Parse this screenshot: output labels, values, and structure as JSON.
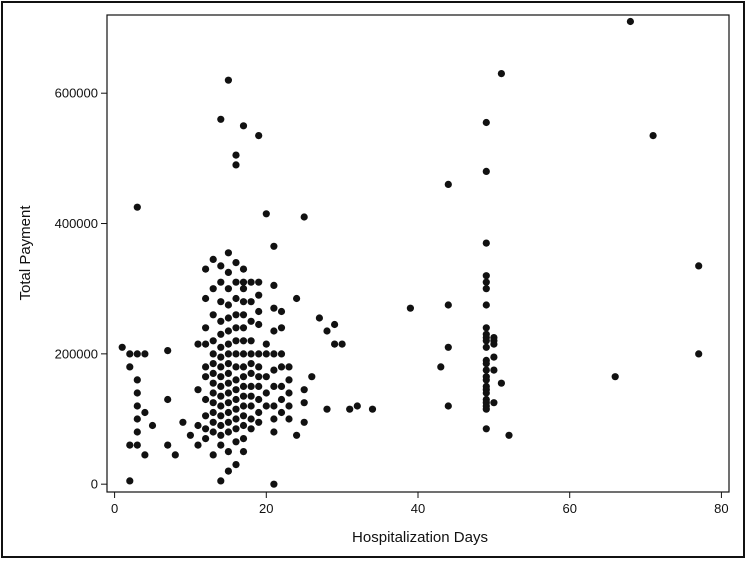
{
  "chart_data": {
    "type": "scatter",
    "xlabel": "Hospitalization Days",
    "ylabel": "Total Payment",
    "xlim": [
      -1,
      81
    ],
    "ylim": [
      -12000,
      720000
    ],
    "x_ticks": [
      0,
      20,
      40,
      60,
      80
    ],
    "y_ticks": [
      0,
      200000,
      400000,
      600000
    ],
    "x_tick_labels": [
      "0",
      "20",
      "40",
      "60",
      "80"
    ],
    "y_tick_labels": [
      "0",
      "200000",
      "400000",
      "600000"
    ],
    "grid": false,
    "marker_color": "#111111",
    "points": [
      [
        1,
        210000
      ],
      [
        2,
        200000
      ],
      [
        2,
        180000
      ],
      [
        2,
        60000
      ],
      [
        2,
        5000
      ],
      [
        3,
        425000
      ],
      [
        3,
        200000
      ],
      [
        3,
        160000
      ],
      [
        3,
        140000
      ],
      [
        3,
        120000
      ],
      [
        3,
        100000
      ],
      [
        3,
        80000
      ],
      [
        3,
        60000
      ],
      [
        4,
        110000
      ],
      [
        4,
        200000
      ],
      [
        4,
        45000
      ],
      [
        5,
        90000
      ],
      [
        7,
        205000
      ],
      [
        7,
        130000
      ],
      [
        7,
        60000
      ],
      [
        8,
        45000
      ],
      [
        9,
        95000
      ],
      [
        10,
        75000
      ],
      [
        11,
        60000
      ],
      [
        11,
        90000
      ],
      [
        11,
        145000
      ],
      [
        11,
        215000
      ],
      [
        12,
        330000
      ],
      [
        12,
        285000
      ],
      [
        12,
        240000
      ],
      [
        12,
        215000
      ],
      [
        12,
        180000
      ],
      [
        12,
        165000
      ],
      [
        12,
        130000
      ],
      [
        12,
        105000
      ],
      [
        12,
        85000
      ],
      [
        12,
        70000
      ],
      [
        13,
        345000
      ],
      [
        13,
        300000
      ],
      [
        13,
        260000
      ],
      [
        13,
        220000
      ],
      [
        13,
        200000
      ],
      [
        13,
        185000
      ],
      [
        13,
        170000
      ],
      [
        13,
        155000
      ],
      [
        13,
        140000
      ],
      [
        13,
        125000
      ],
      [
        13,
        110000
      ],
      [
        13,
        95000
      ],
      [
        13,
        80000
      ],
      [
        13,
        45000
      ],
      [
        14,
        560000
      ],
      [
        14,
        335000
      ],
      [
        14,
        310000
      ],
      [
        14,
        280000
      ],
      [
        14,
        250000
      ],
      [
        14,
        230000
      ],
      [
        14,
        210000
      ],
      [
        14,
        195000
      ],
      [
        14,
        180000
      ],
      [
        14,
        165000
      ],
      [
        14,
        150000
      ],
      [
        14,
        135000
      ],
      [
        14,
        120000
      ],
      [
        14,
        105000
      ],
      [
        14,
        90000
      ],
      [
        14,
        75000
      ],
      [
        14,
        60000
      ],
      [
        14,
        5000
      ],
      [
        15,
        620000
      ],
      [
        15,
        355000
      ],
      [
        15,
        325000
      ],
      [
        15,
        300000
      ],
      [
        15,
        275000
      ],
      [
        15,
        255000
      ],
      [
        15,
        235000
      ],
      [
        15,
        215000
      ],
      [
        15,
        200000
      ],
      [
        15,
        185000
      ],
      [
        15,
        170000
      ],
      [
        15,
        155000
      ],
      [
        15,
        140000
      ],
      [
        15,
        125000
      ],
      [
        15,
        110000
      ],
      [
        15,
        95000
      ],
      [
        15,
        80000
      ],
      [
        15,
        50000
      ],
      [
        15,
        20000
      ],
      [
        16,
        505000
      ],
      [
        16,
        490000
      ],
      [
        16,
        340000
      ],
      [
        16,
        310000
      ],
      [
        16,
        285000
      ],
      [
        16,
        260000
      ],
      [
        16,
        240000
      ],
      [
        16,
        220000
      ],
      [
        16,
        200000
      ],
      [
        16,
        180000
      ],
      [
        16,
        160000
      ],
      [
        16,
        145000
      ],
      [
        16,
        130000
      ],
      [
        16,
        115000
      ],
      [
        16,
        100000
      ],
      [
        16,
        85000
      ],
      [
        16,
        65000
      ],
      [
        16,
        30000
      ],
      [
        17,
        550000
      ],
      [
        17,
        330000
      ],
      [
        17,
        310000
      ],
      [
        17,
        300000
      ],
      [
        17,
        280000
      ],
      [
        17,
        260000
      ],
      [
        17,
        240000
      ],
      [
        17,
        220000
      ],
      [
        17,
        200000
      ],
      [
        17,
        180000
      ],
      [
        17,
        165000
      ],
      [
        17,
        150000
      ],
      [
        17,
        135000
      ],
      [
        17,
        120000
      ],
      [
        17,
        105000
      ],
      [
        17,
        90000
      ],
      [
        17,
        70000
      ],
      [
        17,
        50000
      ],
      [
        18,
        310000
      ],
      [
        18,
        280000
      ],
      [
        18,
        250000
      ],
      [
        18,
        220000
      ],
      [
        18,
        200000
      ],
      [
        18,
        185000
      ],
      [
        18,
        170000
      ],
      [
        18,
        150000
      ],
      [
        18,
        135000
      ],
      [
        18,
        120000
      ],
      [
        18,
        100000
      ],
      [
        18,
        85000
      ],
      [
        19,
        535000
      ],
      [
        19,
        310000
      ],
      [
        19,
        290000
      ],
      [
        19,
        265000
      ],
      [
        19,
        245000
      ],
      [
        19,
        200000
      ],
      [
        19,
        180000
      ],
      [
        19,
        165000
      ],
      [
        19,
        150000
      ],
      [
        19,
        130000
      ],
      [
        19,
        110000
      ],
      [
        19,
        95000
      ],
      [
        20,
        415000
      ],
      [
        20,
        215000
      ],
      [
        20,
        200000
      ],
      [
        20,
        165000
      ],
      [
        20,
        140000
      ],
      [
        20,
        120000
      ],
      [
        21,
        365000
      ],
      [
        21,
        305000
      ],
      [
        21,
        270000
      ],
      [
        21,
        235000
      ],
      [
        21,
        200000
      ],
      [
        21,
        175000
      ],
      [
        21,
        150000
      ],
      [
        21,
        120000
      ],
      [
        21,
        100000
      ],
      [
        21,
        80000
      ],
      [
        21,
        0
      ],
      [
        22,
        265000
      ],
      [
        22,
        240000
      ],
      [
        22,
        200000
      ],
      [
        22,
        180000
      ],
      [
        22,
        150000
      ],
      [
        22,
        130000
      ],
      [
        22,
        110000
      ],
      [
        23,
        180000
      ],
      [
        23,
        160000
      ],
      [
        23,
        140000
      ],
      [
        23,
        120000
      ],
      [
        23,
        100000
      ],
      [
        24,
        285000
      ],
      [
        24,
        75000
      ],
      [
        25,
        410000
      ],
      [
        25,
        145000
      ],
      [
        25,
        125000
      ],
      [
        25,
        95000
      ],
      [
        26,
        165000
      ],
      [
        27,
        255000
      ],
      [
        28,
        235000
      ],
      [
        28,
        115000
      ],
      [
        29,
        245000
      ],
      [
        29,
        215000
      ],
      [
        30,
        215000
      ],
      [
        31,
        115000
      ],
      [
        32,
        120000
      ],
      [
        34,
        115000
      ],
      [
        39,
        270000
      ],
      [
        43,
        180000
      ],
      [
        44,
        460000
      ],
      [
        44,
        275000
      ],
      [
        44,
        210000
      ],
      [
        44,
        120000
      ],
      [
        49,
        555000
      ],
      [
        49,
        480000
      ],
      [
        49,
        370000
      ],
      [
        49,
        320000
      ],
      [
        49,
        310000
      ],
      [
        49,
        300000
      ],
      [
        49,
        275000
      ],
      [
        49,
        240000
      ],
      [
        49,
        230000
      ],
      [
        49,
        225000
      ],
      [
        49,
        220000
      ],
      [
        49,
        210000
      ],
      [
        49,
        190000
      ],
      [
        49,
        185000
      ],
      [
        49,
        175000
      ],
      [
        49,
        165000
      ],
      [
        49,
        160000
      ],
      [
        49,
        150000
      ],
      [
        49,
        145000
      ],
      [
        49,
        140000
      ],
      [
        49,
        130000
      ],
      [
        49,
        125000
      ],
      [
        49,
        120000
      ],
      [
        49,
        115000
      ],
      [
        49,
        85000
      ],
      [
        50,
        225000
      ],
      [
        50,
        220000
      ],
      [
        50,
        215000
      ],
      [
        50,
        195000
      ],
      [
        50,
        175000
      ],
      [
        50,
        125000
      ],
      [
        51,
        630000
      ],
      [
        51,
        155000
      ],
      [
        52,
        75000
      ],
      [
        66,
        165000
      ],
      [
        68,
        710000
      ],
      [
        71,
        535000
      ],
      [
        77,
        335000
      ],
      [
        77,
        200000
      ]
    ]
  }
}
